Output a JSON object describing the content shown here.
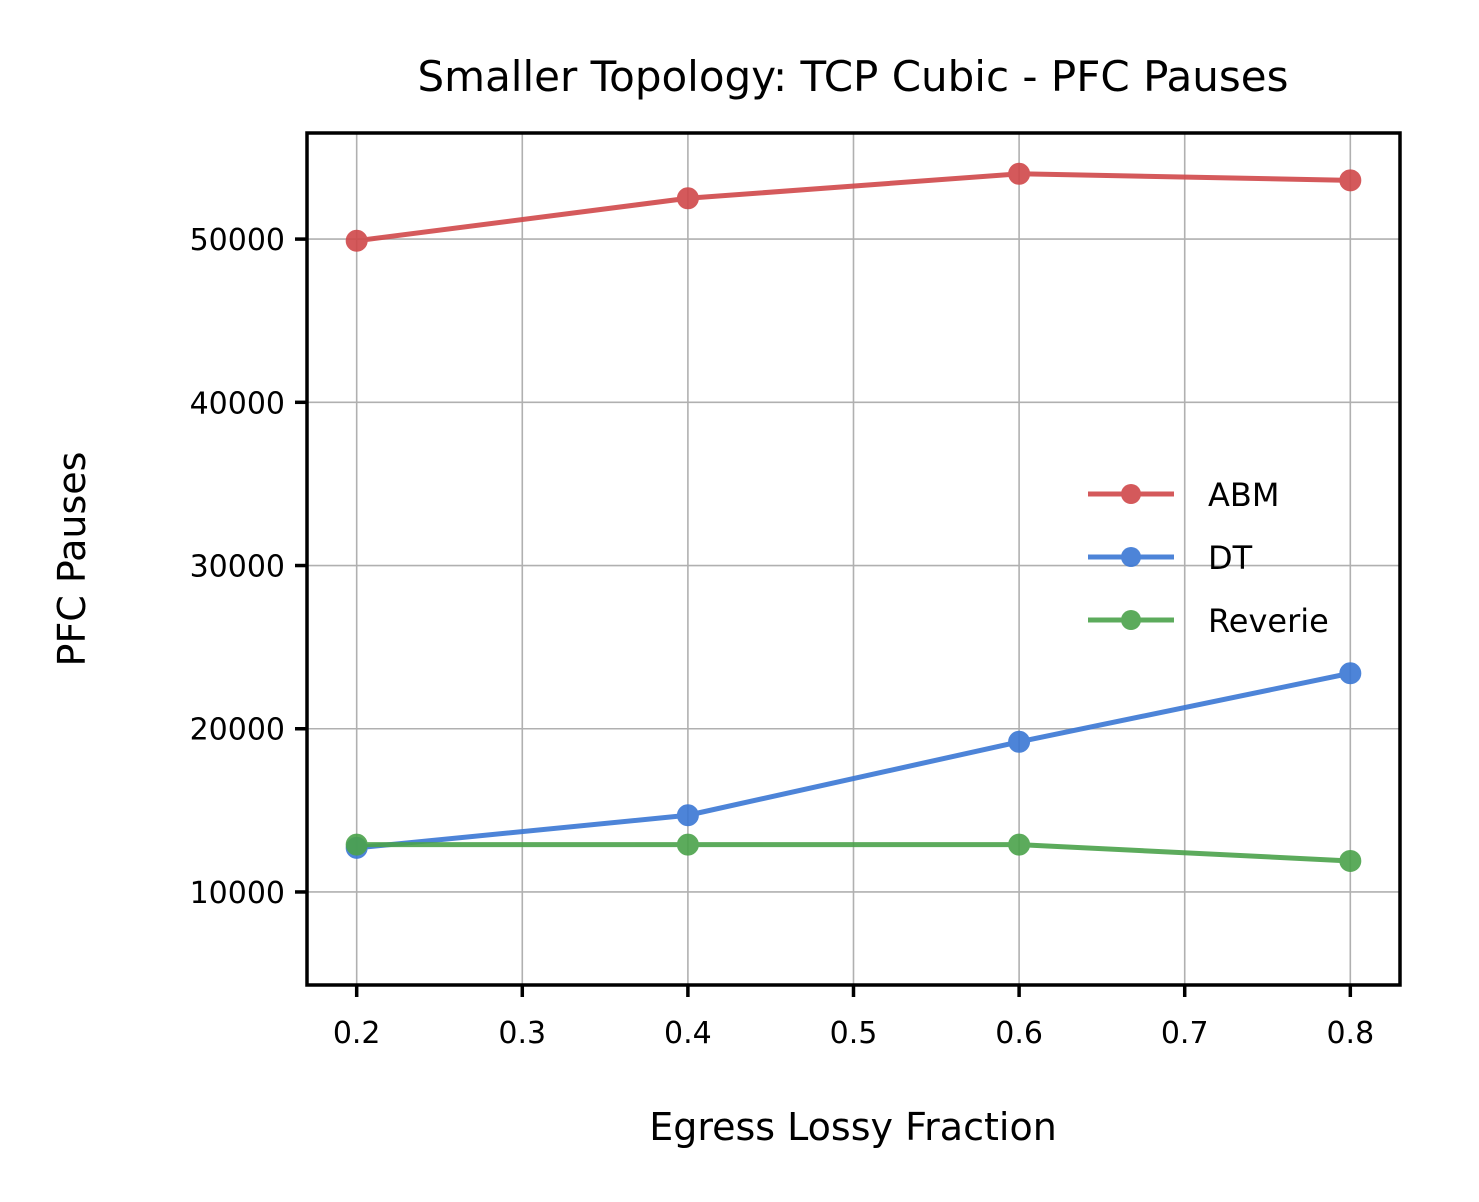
{
  "chart_data": {
    "type": "line",
    "title": "Smaller Topology: TCP Cubic - PFC Pauses",
    "xlabel": "Egress Lossy Fraction",
    "ylabel": "PFC Pauses",
    "x": [
      0.2,
      0.4,
      0.6,
      0.8
    ],
    "xlim": [
      0.17,
      0.83
    ],
    "ylim": [
      4300,
      56500
    ],
    "xticks": [
      "0.2",
      "0.3",
      "0.4",
      "0.5",
      "0.6",
      "0.7",
      "0.8"
    ],
    "xtick_values": [
      0.2,
      0.3,
      0.4,
      0.5,
      0.6,
      0.7,
      0.8
    ],
    "yticks": [
      "10000",
      "20000",
      "30000",
      "40000",
      "50000"
    ],
    "ytick_values": [
      10000,
      20000,
      30000,
      40000,
      50000
    ],
    "grid": true,
    "legend_position": "center-right",
    "series": [
      {
        "name": "ABM",
        "color": "#d0484a",
        "values": [
          49900,
          52500,
          54000,
          53600
        ]
      },
      {
        "name": "DT",
        "color": "#3a77d4",
        "values": [
          12700,
          14700,
          19200,
          23400
        ]
      },
      {
        "name": "Reverie",
        "color": "#4ba24b",
        "values": [
          12900,
          12900,
          12900,
          11900
        ]
      }
    ]
  }
}
